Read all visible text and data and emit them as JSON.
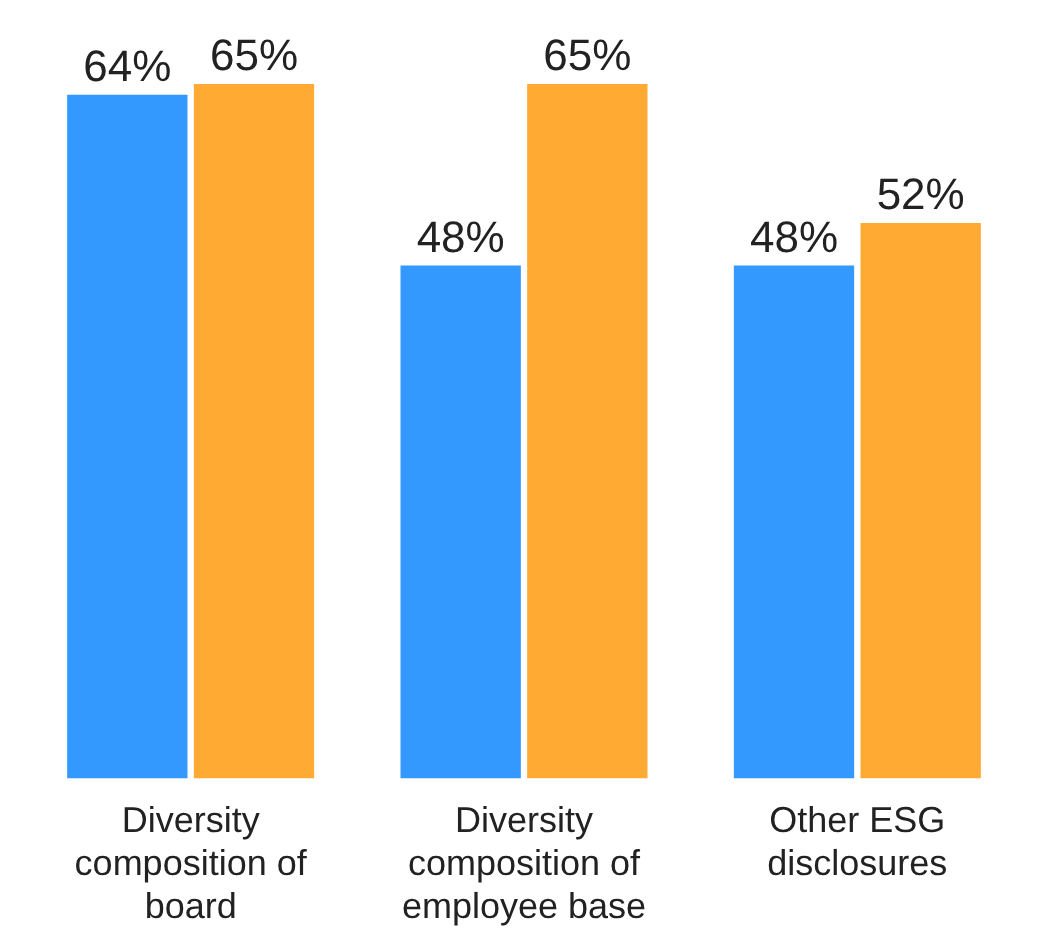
{
  "chart_data": {
    "type": "bar",
    "categories": [
      "Diversity composition of board",
      "Diversity composition of employee base",
      "Other ESG disclosures"
    ],
    "series": [
      {
        "color": "#3399ff",
        "values": [
          64,
          48,
          48
        ],
        "value_labels": [
          "64%",
          "48%",
          "48%"
        ]
      },
      {
        "color": "#ffaa33",
        "values": [
          65,
          65,
          52
        ],
        "value_labels": [
          "65%",
          "65%",
          "52%"
        ]
      }
    ],
    "grid": false,
    "legend": false
  }
}
